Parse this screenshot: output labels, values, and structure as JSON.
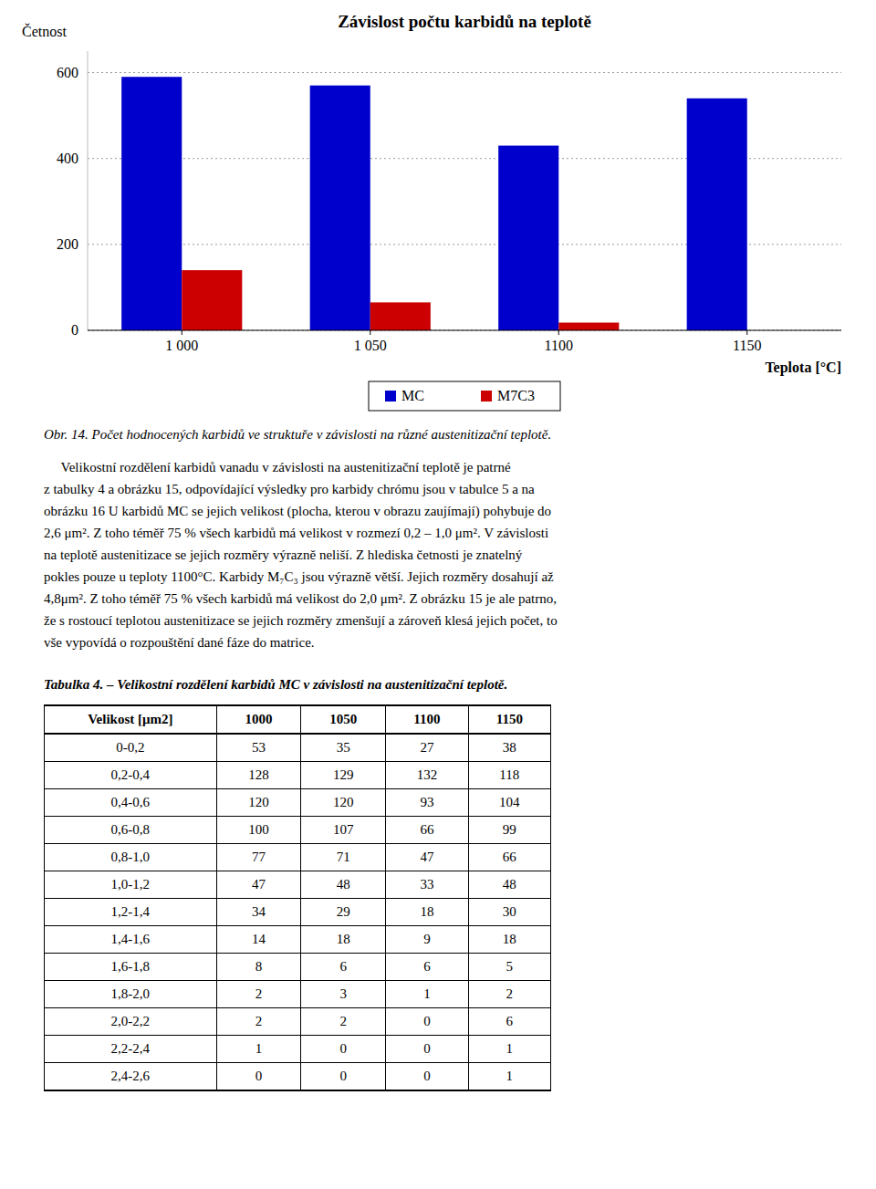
{
  "chart_data": [
    {
      "type": "bar",
      "title": "Závislost počtu karbidů na teplotě",
      "ylabel": "Četnost",
      "xlabel": "Teplota [°C]",
      "categories": [
        "1 000",
        "1 050",
        "1100",
        "1150"
      ],
      "series": [
        {
          "name": "MC",
          "color": "#0000CC",
          "values": [
            590,
            570,
            430,
            540
          ]
        },
        {
          "name": "M7C3",
          "color": "#CC0000",
          "values": [
            140,
            65,
            18,
            0
          ]
        }
      ],
      "ylim": [
        0,
        650
      ],
      "yticks": [
        0,
        200,
        400,
        600
      ],
      "grid": true,
      "legend": "bottom",
      "annotations": [
        "Obr. 14. Počet hodnocených karbidů ve struktuře v závislosti na různé austenitizační teplotě.",
        "     Velikostní rozdělení karbidů vanadu v závislosti na austenitizační teplotě je patrné",
        "z tabulky 4 a obrázku 15, odpovídající výsledky pro karbidy chrómu jsou v tabulce 5 a na",
        "obrázku 16 U karbidů MC se jejich velikost (plocha, kterou v obrazu zaujímají) pohybuje do",
        "2,6 μm². Z toho téměř 75 % všech karbidů má velikost v rozmezí 0,2 – 1,0 μm². V závislosti",
        "na teplotě austenitizace se jejich rozměry výrazně neliší. Z hlediska četnosti je znatelný",
        "pokles pouze u teploty 1100°C. Karbidy M₇C₃ jsou výrazně větší. Jejich rozměry dosahují až",
        "4,8μm². Z toho téměř 75 % všech karbidů má velikost do 2,0 μm². Z obrázku 15 je ale patrno,",
        "že s rostoucí teplotou austenitizace se jejich rozměry zmenšují a zároveň klesá jejich počet, to",
        "vše vypovídá o rozpouštění dané fáze do matrice."
      ]
    },
    {
      "type": "table",
      "title": "Tabulka 4. – Velikostní rozdělení karbidů MC v závislosti na austenitizační teplotě.",
      "xlabel": "Velikost [μm2]",
      "categories": [
        "0-0,2",
        "0,2-0,4",
        "0,4-0,6",
        "0,6-0,8",
        "0,8-1,0",
        "1,0-1,2",
        "1,2-1,4",
        "1,4-1,6",
        "1,6-1,8",
        "1,8-2,0",
        "2,0-2,2",
        "2,2-2,4",
        "2,4-2,6"
      ],
      "series": [
        {
          "name": "1000",
          "values": [
            53,
            128,
            120,
            100,
            77,
            47,
            34,
            14,
            8,
            2,
            2,
            1,
            0
          ]
        },
        {
          "name": "1050",
          "values": [
            35,
            129,
            120,
            107,
            71,
            48,
            29,
            18,
            6,
            3,
            2,
            0,
            0
          ]
        },
        {
          "name": "1100",
          "values": [
            27,
            132,
            93,
            66,
            47,
            33,
            18,
            9,
            6,
            1,
            0,
            0,
            0
          ]
        },
        {
          "name": "1150",
          "values": [
            38,
            118,
            104,
            99,
            66,
            48,
            30,
            18,
            5,
            2,
            6,
            1,
            1
          ]
        }
      ]
    }
  ]
}
